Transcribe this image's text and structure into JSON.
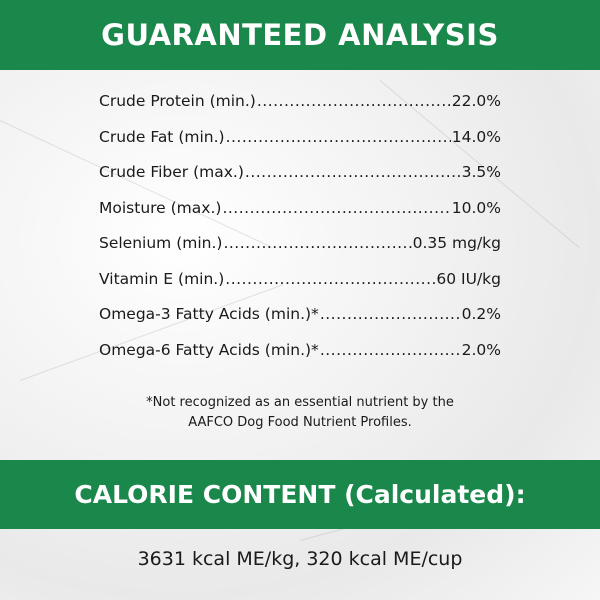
{
  "header": {
    "title": "GUARANTEED ANALYSIS"
  },
  "analysis": [
    {
      "label": "Crude Protein (min.)",
      "value": "22.0%"
    },
    {
      "label": "Crude Fat (min.)",
      "value": "14.0%"
    },
    {
      "label": "Crude Fiber (max.)",
      "value": "3.5%"
    },
    {
      "label": "Moisture (max.)",
      "value": "10.0%"
    },
    {
      "label": "Selenium (min.)",
      "value": "0.35 mg/kg"
    },
    {
      "label": "Vitamin E (min.)",
      "value": "60 IU/kg"
    },
    {
      "label": "Omega-3 Fatty Acids (min.)*",
      "value": "0.2%"
    },
    {
      "label": "Omega-6 Fatty Acids (min.)*",
      "value": "2.0%"
    }
  ],
  "footnote": {
    "line1": "*Not recognized as an essential nutrient by the",
    "line2": "AAFCO Dog Food Nutrient Profiles."
  },
  "calorie": {
    "title": "CALORIE CONTENT (Calculated):",
    "value": "3631 kcal ME/kg, 320 kcal ME/cup"
  },
  "colors": {
    "band_green": "#1a874b",
    "background": "marble white"
  }
}
